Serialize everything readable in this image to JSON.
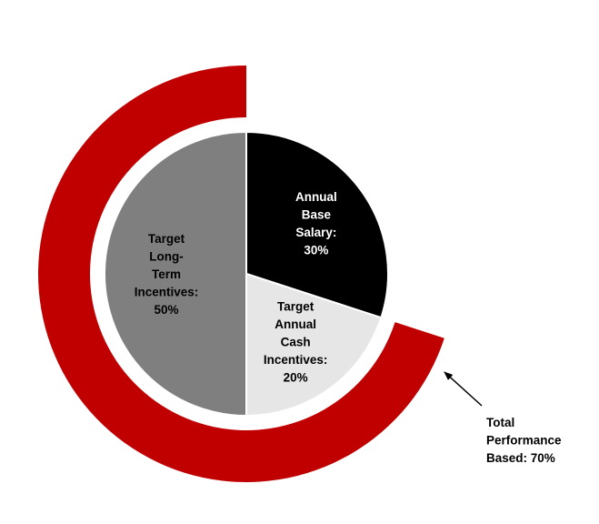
{
  "chart_data": {
    "type": "pie",
    "inner_pie": {
      "slices": [
        {
          "lines": [
            "Annual",
            "Base",
            "Salary:",
            "30%"
          ],
          "value": 30,
          "color": "#000000",
          "text_color": "#ffffff"
        },
        {
          "lines": [
            "Target",
            "Annual",
            "Cash",
            "Incentives:",
            "20%"
          ],
          "value": 20,
          "color": "#e6e6e6",
          "text_color": "#000000"
        },
        {
          "lines": [
            "Target",
            "Long-",
            "Term",
            "Incentives:",
            "50%"
          ],
          "value": 50,
          "color": "#7f7f7f",
          "text_color": "#000000"
        }
      ]
    },
    "outer_ring": {
      "value": 70,
      "color": "#c00000",
      "label_lines": [
        "Total",
        "Performance",
        "Based: 70%"
      ]
    }
  }
}
